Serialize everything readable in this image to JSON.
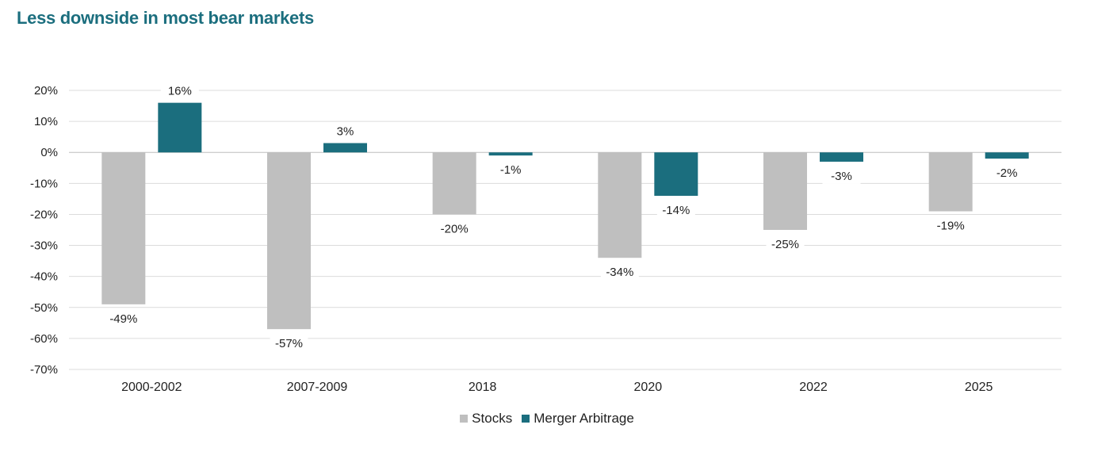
{
  "title": "Less downside in most bear markets",
  "chart_data": {
    "type": "bar",
    "title": "Less downside in most bear markets",
    "xlabel": "",
    "ylabel": "",
    "categories": [
      "2000-2002",
      "2007-2009",
      "2018",
      "2020",
      "2022",
      "2025"
    ],
    "series": [
      {
        "name": "Stocks",
        "color": "#bfbfbf",
        "values": [
          -49,
          -57,
          -20,
          -34,
          -25,
          -19
        ],
        "labels": [
          "-49%",
          "-57%",
          "-20%",
          "-34%",
          "-25%",
          "-19%"
        ]
      },
      {
        "name": "Merger Arbitrage",
        "color": "#1b6e7e",
        "values": [
          16,
          3,
          -1,
          -14,
          -3,
          -2
        ],
        "labels": [
          "16%",
          "3%",
          "-1%",
          "-14%",
          "-3%",
          "-2%"
        ]
      }
    ],
    "ylim": [
      -70,
      20
    ],
    "yticks": [
      20,
      10,
      0,
      -10,
      -20,
      -30,
      -40,
      -50,
      -60,
      -70
    ],
    "ytick_labels": [
      "20%",
      "10%",
      "0%",
      "-10%",
      "-20%",
      "-30%",
      "-40%",
      "-50%",
      "-60%",
      "-70%"
    ],
    "grid": true,
    "legend_position": "bottom-center"
  }
}
